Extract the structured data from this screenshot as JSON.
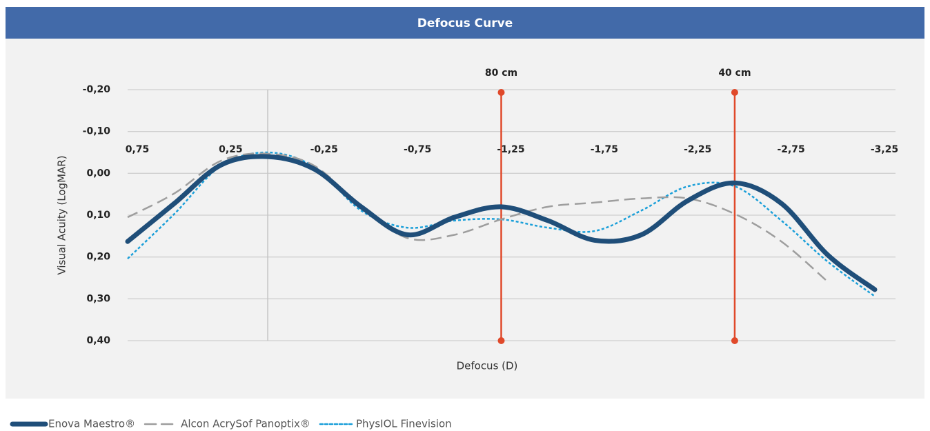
{
  "chart_data": {
    "type": "line",
    "title": "Defocus Curve",
    "x_label": "Defocus (D)",
    "y_label": "Visual Acuity (LogMAR)",
    "x": [
      0.75,
      0.5,
      0.25,
      0,
      -0.25,
      -0.5,
      -0.75,
      -1.0,
      -1.25,
      -1.5,
      -1.75,
      -2.0,
      -2.25,
      -2.5,
      -2.75,
      -3.0,
      -3.25
    ],
    "xlim": [
      0.75,
      -3.25
    ],
    "xticks": [
      {
        "value": 0.75,
        "label": "0,75"
      },
      {
        "value": 0.25,
        "label": "0,25"
      },
      {
        "value": -0.25,
        "label": "-0,25"
      },
      {
        "value": -0.75,
        "label": "-0,75"
      },
      {
        "value": -1.25,
        "label": "-1,25"
      },
      {
        "value": -1.75,
        "label": "-1,75"
      },
      {
        "value": -2.25,
        "label": "-2,25"
      },
      {
        "value": -2.75,
        "label": "-2,75"
      },
      {
        "value": -3.25,
        "label": "-3,25"
      }
    ],
    "ylim": [
      -0.2,
      0.4
    ],
    "yticks": [
      {
        "value": -0.2,
        "label": "-0,20"
      },
      {
        "value": -0.1,
        "label": "-0,10"
      },
      {
        "value": 0,
        "label": "0,00"
      },
      {
        "value": 0.1,
        "label": "0,10"
      },
      {
        "value": 0.2,
        "label": "0,20"
      },
      {
        "value": 0.3,
        "label": "0,30"
      },
      {
        "value": 0.4,
        "label": "0,40"
      }
    ],
    "y_inverted": true,
    "grid": true,
    "annotations": [
      {
        "label": "80 cm",
        "x": -1.25,
        "color": "#e0492a"
      },
      {
        "label": "40 cm",
        "x": -2.5,
        "color": "#e0492a"
      }
    ],
    "series": [
      {
        "name": "Enova Maestro®",
        "color": "#1f4e79",
        "style": "solid",
        "width": 7,
        "values": [
          0.163,
          0.072,
          -0.02,
          -0.04,
          -0.01,
          0.08,
          0.147,
          0.105,
          0.08,
          0.113,
          0.16,
          0.147,
          0.065,
          0.023,
          0.072,
          0.196,
          0.278
        ]
      },
      {
        "name": "Alcon AcrySof Panoptix®",
        "color": "#9e9e9e",
        "style": "dashed",
        "width": 2.5,
        "values": [
          0.105,
          0.048,
          -0.03,
          -0.047,
          -0.018,
          0.08,
          0.155,
          0.147,
          0.11,
          0.08,
          0.07,
          0.06,
          0.06,
          0.097,
          0.163,
          0.26,
          null
        ]
      },
      {
        "name": "PhysIOL Finevision",
        "color": "#1a9fd9",
        "style": "dotted",
        "width": 2.5,
        "values": [
          0.204,
          0.097,
          -0.018,
          -0.05,
          -0.015,
          0.089,
          0.13,
          0.113,
          0.11,
          0.13,
          0.138,
          0.089,
          0.031,
          0.031,
          0.113,
          0.212,
          0.294
        ]
      }
    ]
  }
}
